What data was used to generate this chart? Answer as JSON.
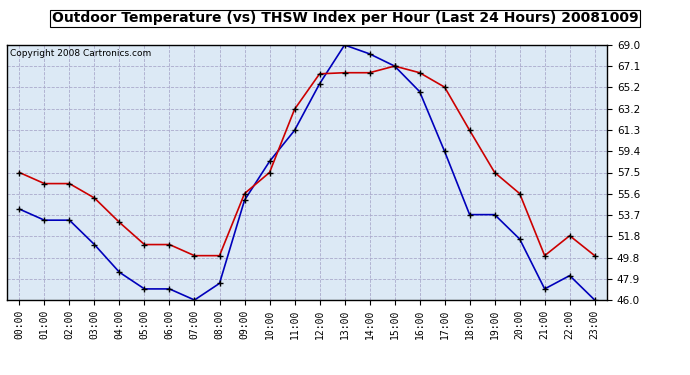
{
  "title": "Outdoor Temperature (vs) THSW Index per Hour (Last 24 Hours) 20081009",
  "copyright": "Copyright 2008 Cartronics.com",
  "hours": [
    "00:00",
    "01:00",
    "02:00",
    "03:00",
    "04:00",
    "05:00",
    "06:00",
    "07:00",
    "08:00",
    "09:00",
    "10:00",
    "11:00",
    "12:00",
    "13:00",
    "14:00",
    "15:00",
    "16:00",
    "17:00",
    "18:00",
    "19:00",
    "20:00",
    "21:00",
    "22:00",
    "23:00"
  ],
  "blue_data": [
    54.2,
    53.2,
    53.2,
    51.0,
    48.5,
    47.0,
    47.0,
    46.0,
    47.5,
    55.0,
    58.5,
    61.3,
    65.5,
    69.0,
    68.2,
    67.1,
    64.8,
    59.4,
    53.7,
    53.7,
    51.5,
    47.0,
    48.2,
    46.0
  ],
  "red_data": [
    57.5,
    56.5,
    56.5,
    55.2,
    53.0,
    51.0,
    51.0,
    50.0,
    50.0,
    55.6,
    57.5,
    63.2,
    66.4,
    66.5,
    66.5,
    67.1,
    66.5,
    65.2,
    61.3,
    57.5,
    55.6,
    50.0,
    51.8,
    50.0
  ],
  "y_ticks": [
    46.0,
    47.9,
    49.8,
    51.8,
    53.7,
    55.6,
    57.5,
    59.4,
    61.3,
    63.2,
    65.2,
    67.1,
    69.0
  ],
  "y_min": 46.0,
  "y_max": 69.0,
  "blue_color": "#0000bb",
  "red_color": "#cc0000",
  "bg_color": "#ffffff",
  "plot_bg_color": "#dce9f5",
  "grid_color": "#aaaacc",
  "title_fontsize": 10,
  "copyright_fontsize": 6.5,
  "title_bg": "#ffffff"
}
